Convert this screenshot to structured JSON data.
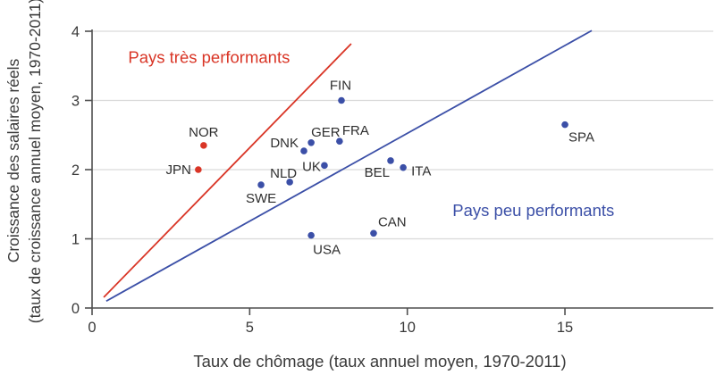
{
  "chart_data": {
    "type": "scatter",
    "title": "",
    "xlabel": "Taux de chômage (taux annuel moyen, 1970-2011)",
    "ylabel_lines": [
      "Croissance des salaires réels",
      "(taux de croissance annuel moyen, 1970-2011)"
    ],
    "xlim": [
      0,
      19.7
    ],
    "ylim": [
      0,
      4
    ],
    "x_ticks": [
      0,
      5,
      10,
      15
    ],
    "y_ticks": [
      0,
      1,
      2,
      3,
      4
    ],
    "grid": "horizontal-only",
    "legend_position": "none",
    "colors": {
      "high_performers": "#d93526",
      "low_performers": "#3b4fa7",
      "gridline": "#d9d9d9",
      "axis": "#4f4f4f",
      "tick_text": "#3a3a3a",
      "point_label_text": "#2e2e2e"
    },
    "series": [
      {
        "name": "high-performers",
        "color": "#d93526",
        "points": [
          {
            "label": "NOR",
            "x": 3.54,
            "y": 2.35,
            "anchor": "middle",
            "dx": 0,
            "dy": -10
          },
          {
            "label": "JPN",
            "x": 3.37,
            "y": 2.0,
            "anchor": "end",
            "dx": -8,
            "dy": 5
          }
        ]
      },
      {
        "name": "low-performers",
        "color": "#3b4fa7",
        "points": [
          {
            "label": "FIN",
            "x": 7.91,
            "y": 3.0,
            "anchor": "middle",
            "dx": -1,
            "dy": -12
          },
          {
            "label": "GER",
            "x": 6.95,
            "y": 2.39,
            "anchor": "start",
            "dx": 0,
            "dy": -7
          },
          {
            "label": "FRA",
            "x": 7.85,
            "y": 2.41,
            "anchor": "start",
            "dx": 3,
            "dy": -7
          },
          {
            "label": "DNK",
            "x": 6.72,
            "y": 2.27,
            "anchor": "end",
            "dx": -6,
            "dy": -4
          },
          {
            "label": "UK",
            "x": 7.37,
            "y": 2.06,
            "anchor": "end",
            "dx": -4,
            "dy": 6
          },
          {
            "label": "NLD",
            "x": 6.27,
            "y": 1.82,
            "anchor": "end",
            "dx": 8,
            "dy": -5
          },
          {
            "label": "SWE",
            "x": 5.36,
            "y": 1.78,
            "anchor": "middle",
            "dx": 0,
            "dy": 20
          },
          {
            "label": "BEL",
            "x": 9.47,
            "y": 2.13,
            "anchor": "end",
            "dx": -1,
            "dy": 18
          },
          {
            "label": "ITA",
            "x": 9.87,
            "y": 2.03,
            "anchor": "start",
            "dx": 9,
            "dy": 9
          },
          {
            "label": "CAN",
            "x": 8.93,
            "y": 1.08,
            "anchor": "start",
            "dx": 5,
            "dy": -8
          },
          {
            "label": "USA",
            "x": 6.95,
            "y": 1.05,
            "anchor": "start",
            "dx": 2,
            "dy": 21
          },
          {
            "label": "SPA",
            "x": 15.0,
            "y": 2.65,
            "anchor": "start",
            "dx": 4,
            "dy": 19
          }
        ]
      }
    ],
    "lines": [
      {
        "name": "high-performers-boundary",
        "color": "#d93526",
        "x1": 0.37,
        "y1": 0.155,
        "x2": 8.22,
        "y2": 3.82
      },
      {
        "name": "low-performers-boundary",
        "color": "#3b4fa7",
        "x1": 0.45,
        "y1": 0.1,
        "x2": 15.85,
        "y2": 4.01
      }
    ],
    "annotations": [
      {
        "name": "high-performers-annotation",
        "text": "Pays très performants",
        "color": "#d93526",
        "x": 3.71,
        "y": 3.54
      },
      {
        "name": "low-performers-annotation",
        "text": "Pays peu performants",
        "color": "#3b4fa7",
        "x": 14.0,
        "y": 1.33
      }
    ]
  }
}
